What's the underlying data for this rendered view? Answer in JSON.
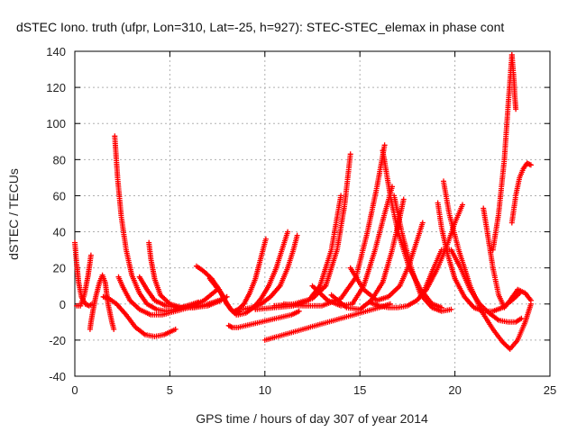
{
  "chart_data": {
    "type": "scatter",
    "title": "dSTEC Iono. truth (ufpr, Lon=310, Lat=-25, h=927): STEC-STEC_elemax in phase cont",
    "xlabel": "GPS time / hours of day 307 of year 2014",
    "ylabel": "dSTEC  / TECUs",
    "xlim": [
      0,
      25
    ],
    "ylim": [
      -40,
      140
    ],
    "x_ticks": [
      0,
      5,
      10,
      15,
      20,
      25
    ],
    "y_ticks": [
      -40,
      -20,
      0,
      20,
      40,
      60,
      80,
      100,
      120,
      140
    ],
    "grid": true,
    "marker": "+",
    "series_color": "#ff0000",
    "series": [
      {
        "x": [
          0.0,
          0.1,
          0.2,
          0.35,
          0.55,
          0.75,
          0.9
        ],
        "y": [
          34,
          22,
          12,
          4,
          0,
          -1,
          0
        ]
      },
      {
        "x": [
          0.1,
          0.3,
          0.5,
          0.7,
          0.85
        ],
        "y": [
          -1,
          -1,
          5,
          16,
          27
        ]
      },
      {
        "x": [
          0.8,
          0.85,
          0.95,
          1.1,
          1.3,
          1.45,
          1.6,
          1.75,
          1.95,
          2.05
        ],
        "y": [
          -14,
          -10,
          -4,
          4,
          12,
          16,
          12,
          0,
          -10,
          -14
        ]
      },
      {
        "x": [
          2.1,
          2.25,
          2.45,
          2.7,
          3.0,
          3.4,
          3.8,
          4.3,
          4.8,
          5.3,
          5.9,
          6.5
        ],
        "y": [
          93,
          70,
          48,
          30,
          16,
          6,
          0,
          -3,
          -4,
          -3,
          -1,
          1
        ]
      },
      {
        "x": [
          1.5,
          1.8,
          2.2,
          2.7,
          3.2,
          3.7,
          4.2,
          4.7,
          5.3
        ],
        "y": [
          4,
          3,
          0,
          -6,
          -13,
          -17,
          -18,
          -17,
          -14
        ]
      },
      {
        "x": [
          2.3,
          2.5,
          2.9,
          3.4,
          4.0,
          4.6,
          5.3,
          6.0,
          6.8,
          7.5
        ],
        "y": [
          15,
          10,
          2,
          -3,
          -6,
          -6,
          -4,
          -2,
          2,
          8
        ]
      },
      {
        "x": [
          3.4,
          3.8,
          4.2,
          4.8,
          5.5,
          6.2,
          7.0,
          7.7
        ],
        "y": [
          15,
          8,
          2,
          -1,
          -2,
          -2,
          -1,
          2
        ]
      },
      {
        "x": [
          3.9,
          4.0,
          4.2,
          4.5,
          5.0,
          5.6,
          6.3,
          7.0,
          7.6,
          8.0
        ],
        "y": [
          34,
          25,
          14,
          5,
          0,
          -2,
          -2,
          0,
          2,
          4
        ]
      },
      {
        "x": [
          6.4,
          6.8,
          7.2,
          7.6,
          7.9,
          8.2,
          8.5
        ],
        "y": [
          21,
          18,
          14,
          8,
          2,
          -3,
          -6
        ]
      },
      {
        "x": [
          7.1,
          7.4,
          7.7,
          8.0,
          8.3,
          8.5,
          8.7
        ],
        "y": [
          14,
          10,
          6,
          0,
          -4,
          -5,
          -4
        ]
      },
      {
        "x": [
          8.1,
          8.3,
          8.6,
          9.0,
          9.4,
          9.8,
          10.2,
          10.6,
          11.0,
          11.4,
          11.8
        ],
        "y": [
          -12,
          -13,
          -13,
          -12,
          -11,
          -10,
          -9,
          -8,
          -7,
          -6,
          -4
        ]
      },
      {
        "x": [
          8.4,
          8.6,
          8.9,
          9.2,
          9.5,
          9.7,
          9.9,
          10.05
        ],
        "y": [
          -4,
          -3,
          0,
          6,
          14,
          22,
          30,
          36
        ]
      },
      {
        "x": [
          8.6,
          9.0,
          9.4,
          9.8,
          10.2,
          10.6,
          10.9,
          11.2
        ],
        "y": [
          -6,
          -5,
          -2,
          3,
          10,
          20,
          30,
          40
        ]
      },
      {
        "x": [
          8.8,
          9.3,
          9.8,
          10.3,
          10.8,
          11.2,
          11.5,
          11.7
        ],
        "y": [
          -3,
          -2,
          0,
          4,
          10,
          20,
          30,
          38
        ]
      },
      {
        "x": [
          10.0,
          11.0,
          12.0,
          13.0,
          14.0,
          15.0,
          16.0,
          16.6
        ],
        "y": [
          -20,
          -17,
          -14,
          -11,
          -8,
          -5,
          -2,
          0
        ]
      },
      {
        "x": [
          10.5,
          11.5,
          12.5,
          13.2,
          13.8,
          14.2,
          14.5
        ],
        "y": [
          -1,
          0,
          3,
          10,
          30,
          55,
          83
        ]
      },
      {
        "x": [
          9.5,
          10.5,
          11.5,
          12.3,
          12.9,
          13.5,
          14.0
        ],
        "y": [
          -3,
          -2,
          -1,
          2,
          10,
          30,
          60
        ]
      },
      {
        "x": [
          11.0,
          12.0,
          13.0,
          14.0,
          14.8,
          15.4,
          15.9,
          16.3
        ],
        "y": [
          0,
          -1,
          -1,
          3,
          15,
          40,
          65,
          88
        ]
      },
      {
        "x": [
          12.5,
          13.3,
          14.0,
          14.6,
          15.2,
          15.8,
          16.3,
          16.7
        ],
        "y": [
          10,
          2,
          -1,
          0,
          10,
          30,
          50,
          65
        ]
      },
      {
        "x": [
          13.5,
          14.3,
          15.0,
          15.6,
          16.2,
          16.7,
          17.1,
          17.3
        ],
        "y": [
          5,
          -2,
          -3,
          2,
          12,
          30,
          48,
          58
        ]
      },
      {
        "x": [
          14.5,
          15.2,
          15.9,
          16.5,
          17.1,
          17.6,
          18.0,
          18.3
        ],
        "y": [
          20,
          8,
          2,
          4,
          10,
          22,
          35,
          45
        ]
      },
      {
        "x": [
          15.5,
          16.0,
          16.5,
          17.0,
          17.5,
          18.0,
          18.5,
          19.0,
          19.5,
          20.0,
          20.4
        ],
        "y": [
          1,
          -1,
          -2,
          -2,
          -1,
          2,
          8,
          18,
          30,
          45,
          55
        ]
      },
      {
        "x": [
          16.2,
          16.6,
          17.0,
          17.6,
          18.2,
          18.8,
          19.3
        ],
        "y": [
          85,
          60,
          40,
          20,
          8,
          0,
          -2
        ]
      },
      {
        "x": [
          16.8,
          17.2,
          17.7,
          18.2,
          18.8,
          19.3,
          19.8
        ],
        "y": [
          60,
          40,
          20,
          5,
          -2,
          -4,
          -3
        ]
      },
      {
        "x": [
          18.3,
          18.8,
          19.3,
          19.8,
          20.3,
          20.8,
          21.3,
          21.8,
          22.3,
          22.8,
          23.2,
          23.5
        ],
        "y": [
          5,
          18,
          30,
          30,
          20,
          8,
          0,
          -5,
          -9,
          -10,
          -10,
          -8
        ]
      },
      {
        "x": [
          19.1,
          19.3,
          19.6,
          20.0,
          20.5,
          21.0,
          21.5,
          22.0,
          22.5,
          23.0,
          23.4
        ],
        "y": [
          56,
          42,
          28,
          14,
          4,
          -2,
          -4,
          -4,
          -2,
          2,
          6
        ]
      },
      {
        "x": [
          19.4,
          19.7,
          20.2,
          20.8,
          21.4,
          22.0,
          22.5,
          22.9,
          23.3,
          23.7,
          24.0
        ],
        "y": [
          68,
          50,
          30,
          10,
          -4,
          -14,
          -21,
          -25,
          -20,
          -10,
          0
        ]
      },
      {
        "x": [
          21.5,
          21.7,
          22.0,
          22.3,
          22.6,
          22.9,
          23.3,
          23.7,
          24.0
        ],
        "y": [
          53,
          40,
          20,
          5,
          -2,
          2,
          8,
          6,
          2
        ]
      },
      {
        "x": [
          22.0,
          22.3,
          22.6,
          22.8,
          23.0
        ],
        "y": [
          30,
          50,
          80,
          110,
          138
        ]
      },
      {
        "x": [
          23.0,
          23.1,
          23.15,
          23.2
        ],
        "y": [
          138,
          125,
          115,
          108
        ]
      },
      {
        "x": [
          23.0,
          23.2,
          23.4,
          23.6,
          23.8,
          24.0
        ],
        "y": [
          45,
          60,
          70,
          75,
          78,
          77
        ]
      }
    ]
  }
}
